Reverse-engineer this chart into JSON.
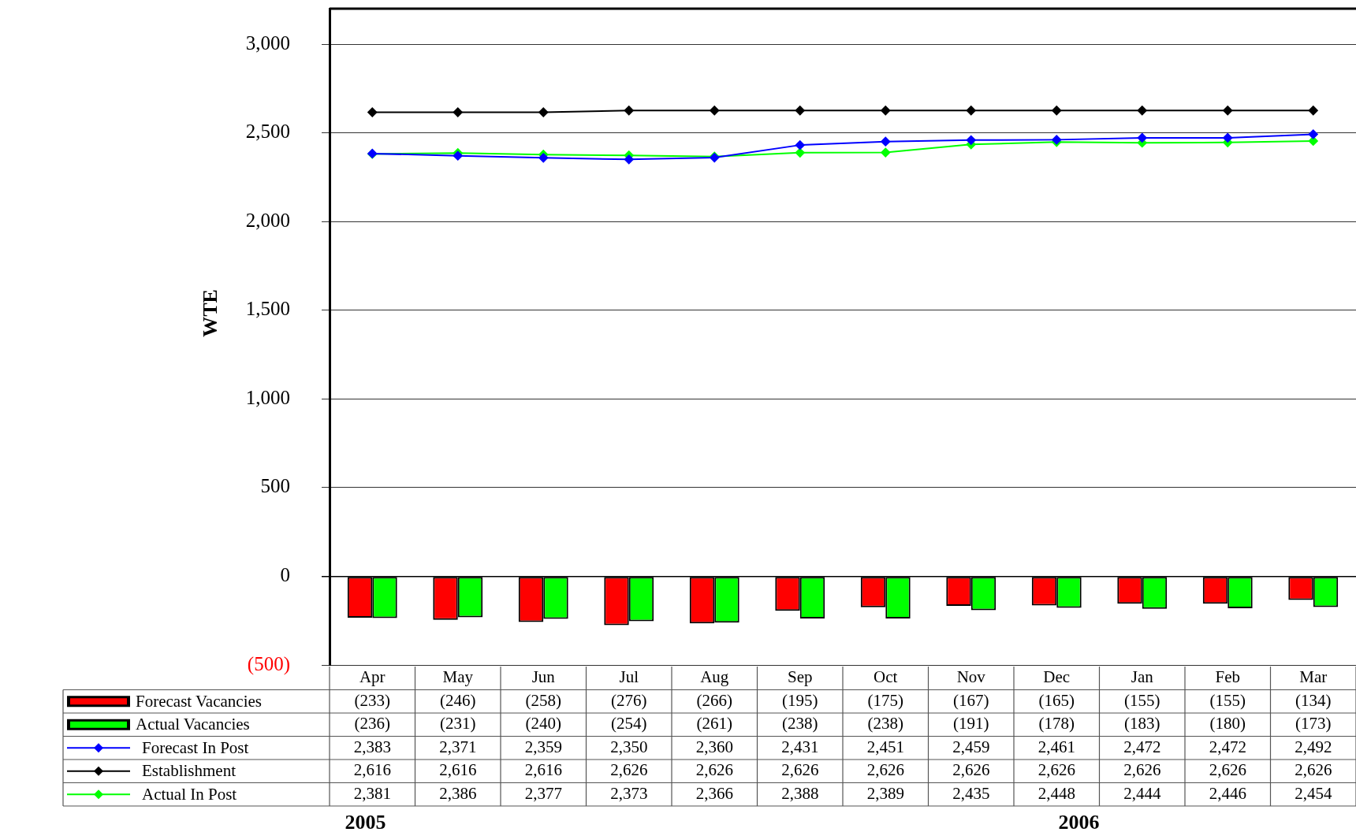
{
  "chart_data": {
    "type": "bar",
    "ylabel": "WTE",
    "categories": [
      "Apr",
      "May",
      "Jun",
      "Jul",
      "Aug",
      "Sep",
      "Oct",
      "Nov",
      "Dec",
      "Jan",
      "Feb",
      "Mar"
    ],
    "series": [
      {
        "name": "Forecast Vacancies",
        "color": "#ff0000",
        "values": [
          -233,
          -246,
          -258,
          -276,
          -266,
          -195,
          -175,
          -167,
          -165,
          -155,
          -155,
          -134
        ],
        "value_labels": [
          "(233)",
          "(246)",
          "(258)",
          "(276)",
          "(266)",
          "(195)",
          "(175)",
          "(167)",
          "(165)",
          "(155)",
          "(155)",
          "(134)"
        ]
      },
      {
        "name": "Actual Vacancies",
        "color": "#00ff00",
        "values": [
          -236,
          -231,
          -240,
          -254,
          -261,
          -238,
          -238,
          -191,
          -178,
          -183,
          -180,
          -173
        ],
        "value_labels": [
          "(236)",
          "(231)",
          "(240)",
          "(254)",
          "(261)",
          "(238)",
          "(238)",
          "(191)",
          "(178)",
          "(183)",
          "(180)",
          "(173)"
        ]
      },
      {
        "name": "Forecast In Post",
        "type": "line",
        "color": "#0000ff",
        "values": [
          2383,
          2371,
          2359,
          2350,
          2360,
          2431,
          2451,
          2459,
          2461,
          2472,
          2472,
          2492
        ],
        "value_labels": [
          "2,383",
          "2,371",
          "2,359",
          "2,350",
          "2,360",
          "2,431",
          "2,451",
          "2,459",
          "2,461",
          "2,472",
          "2,472",
          "2,492"
        ]
      },
      {
        "name": "Establishment",
        "type": "line",
        "color": "#000000",
        "values": [
          2616,
          2616,
          2616,
          2626,
          2626,
          2626,
          2626,
          2626,
          2626,
          2626,
          2626,
          2626
        ],
        "value_labels": [
          "2,616",
          "2,616",
          "2,616",
          "2,626",
          "2,626",
          "2,626",
          "2,626",
          "2,626",
          "2,626",
          "2,626",
          "2,626",
          "2,626"
        ]
      },
      {
        "name": "Actual In Post",
        "type": "line",
        "color": "#00ff00",
        "values": [
          2381,
          2386,
          2377,
          2373,
          2366,
          2388,
          2389,
          2435,
          2448,
          2444,
          2446,
          2454
        ],
        "value_labels": [
          "2,381",
          "2,386",
          "2,377",
          "2,373",
          "2,366",
          "2,388",
          "2,389",
          "2,435",
          "2,448",
          "2,444",
          "2,446",
          "2,454"
        ]
      }
    ],
    "ylim": [
      -500,
      3200
    ],
    "yticks": [
      {
        "value": -500,
        "label": "(500)"
      },
      {
        "value": 0,
        "label": "0"
      },
      {
        "value": 500,
        "label": "500"
      },
      {
        "value": 1000,
        "label": "1,000"
      },
      {
        "value": 1500,
        "label": "1,500"
      },
      {
        "value": 2000,
        "label": "2,000"
      },
      {
        "value": 2500,
        "label": "2,500"
      },
      {
        "value": 3000,
        "label": "3,000"
      }
    ],
    "grid": "y",
    "legend": "bottom",
    "marker": "diamond",
    "line_style": "solid",
    "annotations": [
      "2005",
      "2006"
    ]
  }
}
